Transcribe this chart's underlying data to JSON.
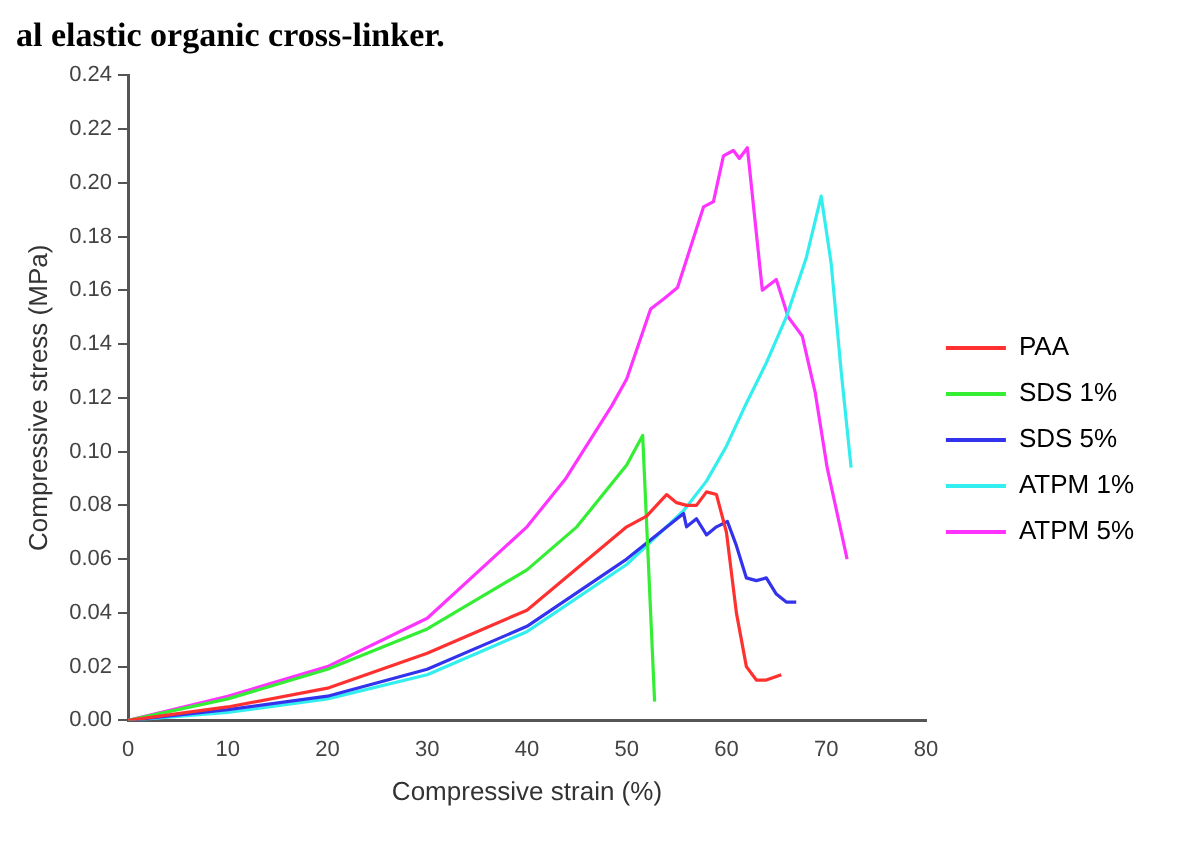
{
  "chart_data": {
    "type": "line",
    "annotations": [
      "al elastic organic cross-linker."
    ],
    "xlabel": "Compressive strain (%)",
    "ylabel": "Compressive stress (MPa)",
    "xlim": [
      0,
      80
    ],
    "xticks": [
      0,
      10,
      20,
      30,
      40,
      50,
      60,
      70,
      80
    ],
    "ylim": [
      0,
      0.24
    ],
    "yticks": [
      {
        "value": 0,
        "label": "0.00"
      },
      {
        "value": 0.02,
        "label": "0.02"
      },
      {
        "value": 0.04,
        "label": "0.04"
      },
      {
        "value": 0.06,
        "label": "0.06"
      },
      {
        "value": 0.08,
        "label": "0.08"
      },
      {
        "value": 0.1,
        "label": "0.10"
      },
      {
        "value": 0.12,
        "label": "0.12"
      },
      {
        "value": 0.14,
        "label": "0.14"
      },
      {
        "value": 0.16,
        "label": "0.16"
      },
      {
        "value": 0.18,
        "label": "0.18"
      },
      {
        "value": 0.2,
        "label": "0.20"
      },
      {
        "value": 0.22,
        "label": "0.22"
      },
      {
        "value": 0.24,
        "label": "0.24"
      }
    ],
    "grid": false,
    "legend": "right",
    "marker": "none",
    "line_style": "solid",
    "series": [
      {
        "name": "PAA",
        "color": "#ff3030",
        "x": [
          0,
          10,
          20,
          30,
          40,
          50,
          52,
          54,
          55,
          56,
          57,
          58,
          59,
          60,
          61,
          62,
          63,
          64,
          65.5
        ],
        "values": [
          0,
          0.005,
          0.012,
          0.025,
          0.041,
          0.072,
          0.076,
          0.084,
          0.081,
          0.08,
          0.08,
          0.085,
          0.084,
          0.07,
          0.04,
          0.02,
          0.015,
          0.015,
          0.017
        ]
      },
      {
        "name": "SDS 1%",
        "color": "#33ee33",
        "x": [
          0,
          10,
          20,
          30,
          40,
          45,
          50,
          51.6,
          52.8
        ],
        "values": [
          0,
          0.008,
          0.019,
          0.034,
          0.056,
          0.072,
          0.095,
          0.106,
          0.007
        ]
      },
      {
        "name": "SDS 5%",
        "color": "#3333ee",
        "x": [
          0,
          10,
          20,
          30,
          40,
          50,
          55.7,
          56,
          57,
          58,
          59,
          60.1,
          61,
          62,
          63,
          64,
          65,
          66,
          67
        ],
        "values": [
          0,
          0.004,
          0.009,
          0.019,
          0.035,
          0.06,
          0.077,
          0.072,
          0.075,
          0.069,
          0.072,
          0.074,
          0.065,
          0.053,
          0.052,
          0.053,
          0.047,
          0.044,
          0.044
        ]
      },
      {
        "name": "ATPM 1%",
        "color": "#33eeee",
        "x": [
          0,
          10,
          20,
          30,
          40,
          50,
          55.7,
          58,
          60,
          62,
          64,
          66,
          68,
          69.5,
          70.5,
          71.5,
          72.5
        ],
        "values": [
          0,
          0.003,
          0.008,
          0.017,
          0.033,
          0.058,
          0.078,
          0.089,
          0.102,
          0.118,
          0.133,
          0.15,
          0.172,
          0.195,
          0.17,
          0.13,
          0.094
        ]
      },
      {
        "name": "ATPM 5%",
        "color": "#ff33ff",
        "x": [
          0,
          10,
          20,
          30,
          40,
          43.9,
          48.5,
          50,
          52.4,
          53.8,
          55.1,
          57.7,
          58.7,
          59.7,
          60.7,
          61.3,
          62.1,
          63.6,
          65,
          66.2,
          67.6,
          68.9,
          70.1,
          72.1
        ],
        "values": [
          0,
          0.009,
          0.02,
          0.038,
          0.072,
          0.09,
          0.117,
          0.127,
          0.153,
          0.157,
          0.161,
          0.191,
          0.193,
          0.21,
          0.212,
          0.209,
          0.213,
          0.16,
          0.164,
          0.15,
          0.143,
          0.122,
          0.094,
          0.06
        ]
      }
    ]
  }
}
